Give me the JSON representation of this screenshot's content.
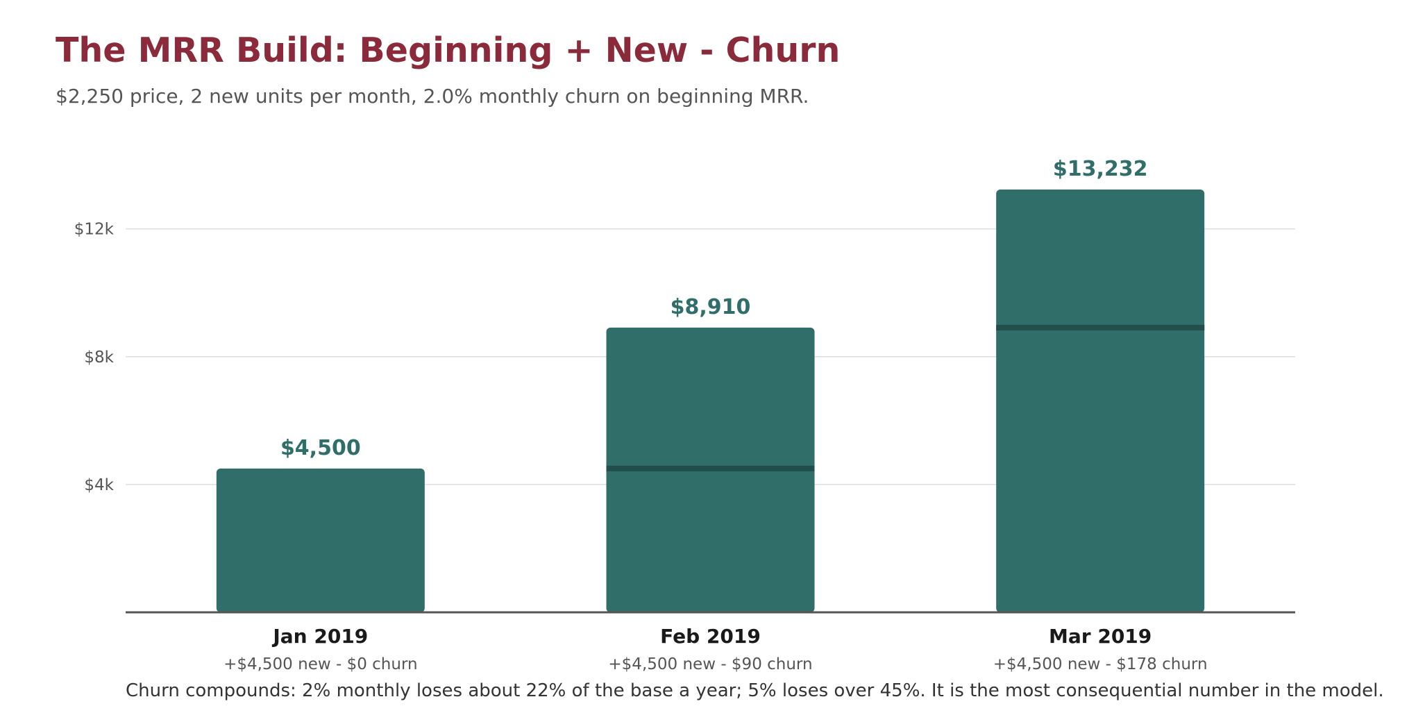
{
  "header": {
    "title": "The MRR Build: Beginning + New - Churn",
    "subtitle": "$2,250 price, 2 new units per month, 2.0% monthly churn on beginning MRR."
  },
  "colors": {
    "title": "#8b2a3a",
    "bar": "#306e6a",
    "bar_divider": "#234d4a",
    "value_label": "#306e6a",
    "grid": "#dddddd",
    "axis": "#555555"
  },
  "chart_data": {
    "type": "bar",
    "categories": [
      "Jan 2019",
      "Feb 2019",
      "Mar 2019"
    ],
    "values": [
      4500,
      8910,
      13232
    ],
    "value_labels": [
      "$4,500",
      "$8,910",
      "$13,232"
    ],
    "beginning_mrr": [
      0,
      4500,
      8910
    ],
    "category_notes": [
      "+$4,500 new - $0 churn",
      "+$4,500 new - $90 churn",
      "+$4,500 new - $178 churn"
    ],
    "yticks": [
      4000,
      8000,
      12000
    ],
    "ytick_labels": [
      "$4k",
      "$8k",
      "$12k"
    ],
    "ylim": [
      0,
      14600
    ],
    "grid": true,
    "legend": "none",
    "xlabel": "",
    "ylabel": ""
  },
  "footnote": "Churn compounds: 2% monthly loses about 22% of the base a year; 5% loses over 45%. It is the most consequential number in the model."
}
